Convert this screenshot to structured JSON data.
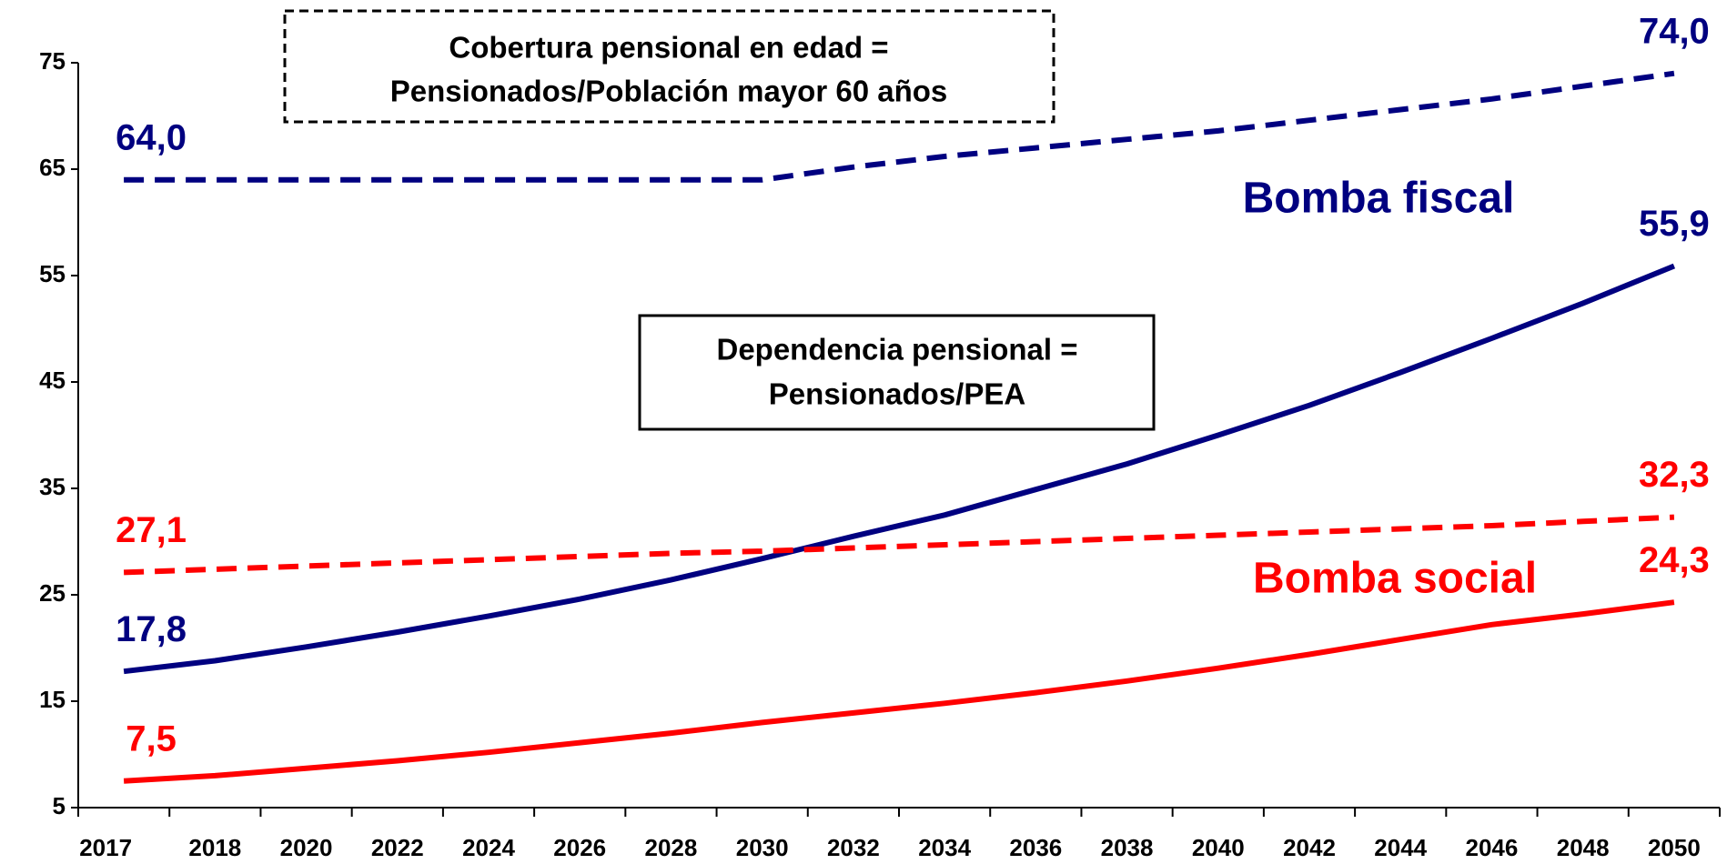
{
  "chart_data": {
    "type": "line",
    "categories": [
      "2017",
      "2018",
      "2020",
      "2022",
      "2024",
      "2026",
      "2028",
      "2030",
      "2032",
      "2034",
      "2036",
      "2038",
      "2040",
      "2042",
      "2044",
      "2046",
      "2048",
      "2050"
    ],
    "ylim": [
      5,
      75
    ],
    "yticks": [
      5,
      15,
      25,
      35,
      45,
      55,
      65,
      75
    ],
    "series": [
      {
        "color": "#000080",
        "dashed": true,
        "values": [
          64.0,
          64.0,
          64.0,
          64.0,
          64.0,
          64.0,
          64.0,
          64.0,
          65.2,
          66.2,
          67.0,
          67.8,
          68.6,
          69.6,
          70.6,
          71.6,
          72.8,
          74.0
        ],
        "value_labels": [
          "64,0",
          null,
          null,
          null,
          null,
          null,
          null,
          null,
          null,
          null,
          null,
          null,
          null,
          null,
          null,
          null,
          null,
          "74,0"
        ]
      },
      {
        "color": "#000080",
        "dashed": false,
        "values": [
          17.8,
          18.8,
          20.1,
          21.5,
          23.0,
          24.6,
          26.4,
          28.4,
          30.5,
          32.5,
          34.9,
          37.3,
          40.0,
          42.8,
          45.9,
          49.1,
          52.4,
          55.9
        ],
        "value_labels": [
          "17,8",
          null,
          null,
          null,
          null,
          null,
          null,
          null,
          null,
          null,
          null,
          null,
          null,
          null,
          null,
          null,
          null,
          "55,9"
        ]
      },
      {
        "color": "#ff0000",
        "dashed": true,
        "values": [
          27.1,
          27.4,
          27.7,
          28.0,
          28.3,
          28.6,
          28.9,
          29.1,
          29.4,
          29.7,
          30.0,
          30.3,
          30.6,
          30.9,
          31.2,
          31.5,
          31.9,
          32.3
        ],
        "value_labels": [
          "27,1",
          null,
          null,
          null,
          null,
          null,
          null,
          null,
          null,
          null,
          null,
          null,
          null,
          null,
          null,
          null,
          null,
          "32,3"
        ]
      },
      {
        "color": "#ff0000",
        "dashed": false,
        "values": [
          7.5,
          8.0,
          8.7,
          9.4,
          10.2,
          11.1,
          12.0,
          13.0,
          13.9,
          14.8,
          15.8,
          16.9,
          18.1,
          19.4,
          20.8,
          22.2,
          23.2,
          24.3
        ],
        "value_labels": [
          "7,5",
          null,
          null,
          null,
          null,
          null,
          null,
          null,
          null,
          null,
          null,
          null,
          null,
          null,
          null,
          null,
          null,
          "24,3"
        ]
      }
    ],
    "boxes": [
      {
        "dashed": true,
        "lines": [
          "Cobertura pensional en edad =",
          "Pensionados/Población mayor 60 años"
        ]
      },
      {
        "dashed": false,
        "lines": [
          "Dependencia pensional =",
          "Pensionados/PEA"
        ]
      }
    ],
    "annotations": [
      {
        "text": "Bomba fiscal",
        "color": "#000080"
      },
      {
        "text": "Bomba social",
        "color": "#ff0000"
      }
    ]
  }
}
